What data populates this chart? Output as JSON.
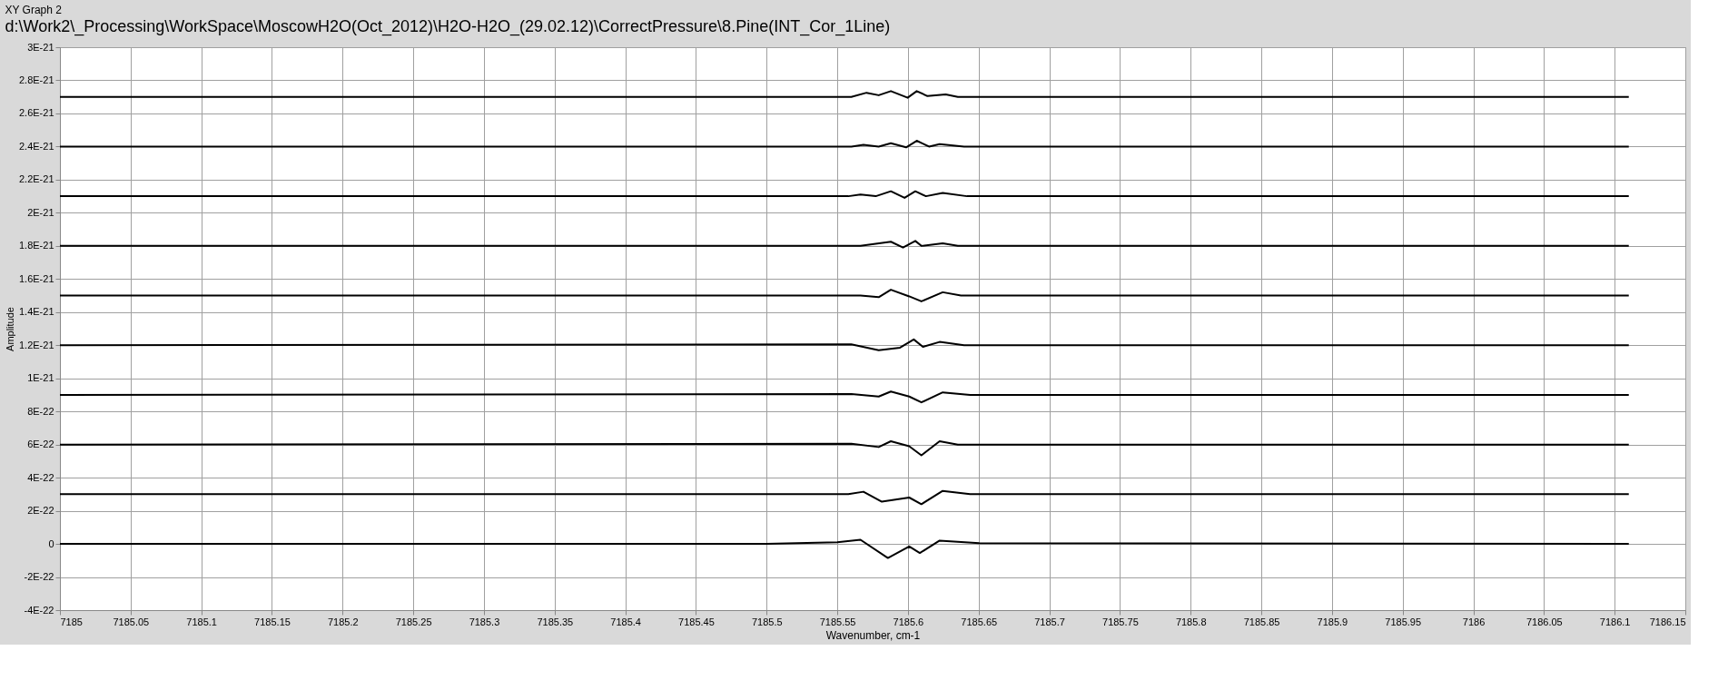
{
  "chart_data": {
    "type": "line",
    "title": "XY Graph 2",
    "subtitle": "d:\\Work2\\_Processing\\WorkSpace\\MoscowH2O(Oct_2012)\\H2O-H2O_(29.02.12)\\CorrectPressure\\8.Pine(INT_Cor_1Line)",
    "xlabel": "Wavenumber, cm-1",
    "ylabel": "Amplitude",
    "xlim": [
      7185,
      7186.15
    ],
    "xticks": [
      7185,
      7185.05,
      7185.1,
      7185.15,
      7185.2,
      7185.25,
      7185.3,
      7185.35,
      7185.4,
      7185.45,
      7185.5,
      7185.55,
      7185.6,
      7185.65,
      7185.7,
      7185.75,
      7185.8,
      7185.85,
      7185.9,
      7185.95,
      7186,
      7186.05,
      7186.1,
      7186.15
    ],
    "ylim": [
      -4e-22,
      3e-21
    ],
    "yticks": [
      {
        "value": -4e-22,
        "label": "-4E-22"
      },
      {
        "value": -2e-22,
        "label": "-2E-22"
      },
      0,
      {
        "value": 2e-22,
        "label": "2E-22"
      },
      {
        "value": 4e-22,
        "label": "4E-22"
      },
      {
        "value": 6e-22,
        "label": "6E-22"
      },
      {
        "value": 8e-22,
        "label": "8E-22"
      },
      {
        "value": 1e-21,
        "label": "1E-21"
      },
      {
        "value": 1.2e-21,
        "label": "1.2E-21"
      },
      {
        "value": 1.4e-21,
        "label": "1.4E-21"
      },
      {
        "value": 1.6e-21,
        "label": "1.6E-21"
      },
      {
        "value": 1.8e-21,
        "label": "1.8E-21"
      },
      {
        "value": 2e-21,
        "label": "2E-21"
      },
      {
        "value": 2.2e-21,
        "label": "2.2E-21"
      },
      {
        "value": 2.4e-21,
        "label": "2.4E-21"
      },
      {
        "value": 2.6e-21,
        "label": "2.6E-21"
      },
      {
        "value": 2.8e-21,
        "label": "2.8E-21"
      },
      {
        "value": 3e-21,
        "label": "3E-21"
      }
    ],
    "grid": true,
    "legend": false,
    "marker": "none",
    "line_style": "solid",
    "series": [
      {
        "color": "#000000",
        "x": [
          7185,
          7185.5,
          7185.55,
          7185.5664,
          7185.5858,
          7185.6009,
          7185.6084,
          7185.6224,
          7185.6504,
          7186.11
        ],
        "values": [
          0,
          0,
          1e-23,
          2.5e-23,
          -8.5e-23,
          -1.5e-23,
          -5.5e-23,
          2e-23,
          5e-24,
          0
        ]
      },
      {
        "color": "#000000",
        "x": [
          7185,
          7185.5578,
          7185.5685,
          7185.5815,
          7185.6009,
          7185.6095,
          7185.6246,
          7185.644,
          7186.11
        ],
        "values": [
          3e-22,
          3e-22,
          3.15e-22,
          2.55e-22,
          2.8e-22,
          2.4e-22,
          3.2e-22,
          3e-22,
          3e-22
        ]
      },
      {
        "color": "#000000",
        "x": [
          7185,
          7185.56,
          7185.5793,
          7185.5879,
          7185.6009,
          7185.6095,
          7185.6224,
          7185.6353,
          7186.11
        ],
        "values": [
          6e-22,
          6.05e-22,
          5.85e-22,
          6.2e-22,
          5.9e-22,
          5.35e-22,
          6.2e-22,
          6e-22,
          6e-22
        ]
      },
      {
        "color": "#000000",
        "x": [
          7185,
          7185.56,
          7185.5793,
          7185.5879,
          7185.6009,
          7185.6095,
          7185.6246,
          7185.644,
          7186.11
        ],
        "values": [
          9e-22,
          9.05e-22,
          8.9e-22,
          9.2e-22,
          8.9e-22,
          8.55e-22,
          9.15e-22,
          9e-22,
          9e-22
        ]
      },
      {
        "color": "#000000",
        "x": [
          7185,
          7185.5599,
          7185.5793,
          7185.5944,
          7185.6041,
          7185.6106,
          7185.6224,
          7185.6397,
          7186.11
        ],
        "values": [
          1.2e-21,
          1.205e-21,
          1.17e-21,
          1.185e-21,
          1.235e-21,
          1.19e-21,
          1.22e-21,
          1.2e-21,
          1.2e-21
        ]
      },
      {
        "color": "#000000",
        "x": [
          7185,
          7185.5664,
          7185.5793,
          7185.5879,
          7185.6009,
          7185.6095,
          7185.6246,
          7185.6375,
          7186.11
        ],
        "values": [
          1.5e-21,
          1.5e-21,
          1.49e-21,
          1.535e-21,
          1.495e-21,
          1.465e-21,
          1.52e-21,
          1.5e-21,
          1.5e-21
        ]
      },
      {
        "color": "#000000",
        "x": [
          7185,
          7185.5664,
          7185.5879,
          7185.5965,
          7185.6052,
          7185.6095,
          7185.6246,
          7185.6353,
          7186.11
        ],
        "values": [
          1.8e-21,
          1.8e-21,
          1.825e-21,
          1.79e-21,
          1.83e-21,
          1.8e-21,
          1.815e-21,
          1.8e-21,
          1.8e-21
        ]
      },
      {
        "color": "#000000",
        "x": [
          7185,
          7185.5578,
          7185.5664,
          7185.5772,
          7185.5879,
          7185.5976,
          7185.6052,
          7185.6127,
          7185.6246,
          7185.6418,
          7186.11
        ],
        "values": [
          2.1e-21,
          2.1e-21,
          2.11e-21,
          2.1e-21,
          2.13e-21,
          2.09e-21,
          2.13e-21,
          2.1e-21,
          2.12e-21,
          2.1e-21,
          2.1e-21
        ]
      },
      {
        "color": "#000000",
        "x": [
          7185,
          7185.56,
          7185.5685,
          7185.5793,
          7185.5879,
          7185.5987,
          7185.6062,
          7185.6149,
          7185.6224,
          7185.6397,
          7186.11
        ],
        "values": [
          2.4e-21,
          2.4e-21,
          2.41e-21,
          2.4e-21,
          2.42e-21,
          2.395e-21,
          2.435e-21,
          2.4e-21,
          2.415e-21,
          2.4e-21,
          2.4e-21
        ]
      },
      {
        "color": "#000000",
        "x": [
          7185,
          7185.5599,
          7185.5707,
          7185.5793,
          7185.5879,
          7185.5998,
          7185.6062,
          7185.6138,
          7185.6267,
          7185.6353,
          7186.11
        ],
        "values": [
          2.7e-21,
          2.7e-21,
          2.725e-21,
          2.71e-21,
          2.735e-21,
          2.695e-21,
          2.735e-21,
          2.705e-21,
          2.715e-21,
          2.7e-21,
          2.7e-21
        ]
      }
    ]
  }
}
